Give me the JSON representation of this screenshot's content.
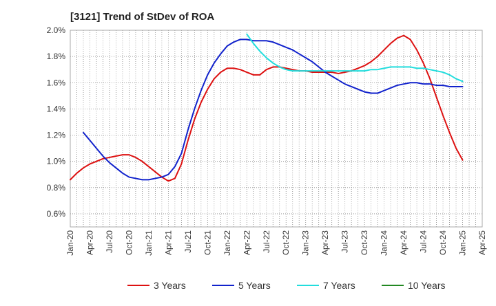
{
  "chart_data": {
    "type": "line",
    "title": "[3121]  Trend of StDev of ROA",
    "xlabel": "",
    "ylabel": "",
    "x_ticks": [
      "Jan-20",
      "Apr-20",
      "Jul-20",
      "Oct-20",
      "Jan-21",
      "Apr-21",
      "Jul-21",
      "Oct-21",
      "Jan-22",
      "Apr-22",
      "Jul-22",
      "Oct-22",
      "Jan-23",
      "Apr-23",
      "Jul-23",
      "Oct-23",
      "Jan-24",
      "Apr-24",
      "Jul-24",
      "Oct-24",
      "Jan-25",
      "Apr-25"
    ],
    "y_ticks": [
      "0.6%",
      "0.8%",
      "1.0%",
      "1.2%",
      "1.4%",
      "1.6%",
      "1.8%",
      "2.0%"
    ],
    "ylim": [
      0.5,
      2.0
    ],
    "grid": true,
    "legend_position": "bottom",
    "series": [
      {
        "name": "3 Years",
        "color": "#dd1111",
        "points": [
          [
            "2020-01",
            0.86
          ],
          [
            "2020-02",
            0.91
          ],
          [
            "2020-03",
            0.95
          ],
          [
            "2020-04",
            0.98
          ],
          [
            "2020-05",
            1.0
          ],
          [
            "2020-06",
            1.02
          ],
          [
            "2020-07",
            1.03
          ],
          [
            "2020-08",
            1.04
          ],
          [
            "2020-09",
            1.05
          ],
          [
            "2020-10",
            1.05
          ],
          [
            "2020-11",
            1.03
          ],
          [
            "2020-12",
            1.0
          ],
          [
            "2021-01",
            0.96
          ],
          [
            "2021-02",
            0.92
          ],
          [
            "2021-03",
            0.88
          ],
          [
            "2021-04",
            0.85
          ],
          [
            "2021-05",
            0.87
          ],
          [
            "2021-06",
            0.98
          ],
          [
            "2021-07",
            1.16
          ],
          [
            "2021-08",
            1.32
          ],
          [
            "2021-09",
            1.45
          ],
          [
            "2021-10",
            1.55
          ],
          [
            "2021-11",
            1.63
          ],
          [
            "2021-12",
            1.68
          ],
          [
            "2022-01",
            1.71
          ],
          [
            "2022-02",
            1.71
          ],
          [
            "2022-03",
            1.7
          ],
          [
            "2022-04",
            1.68
          ],
          [
            "2022-05",
            1.66
          ],
          [
            "2022-06",
            1.66
          ],
          [
            "2022-07",
            1.7
          ],
          [
            "2022-08",
            1.72
          ],
          [
            "2022-09",
            1.72
          ],
          [
            "2022-10",
            1.71
          ],
          [
            "2022-11",
            1.7
          ],
          [
            "2022-12",
            1.69
          ],
          [
            "2023-01",
            1.69
          ],
          [
            "2023-02",
            1.68
          ],
          [
            "2023-03",
            1.68
          ],
          [
            "2023-04",
            1.68
          ],
          [
            "2023-05",
            1.68
          ],
          [
            "2023-06",
            1.67
          ],
          [
            "2023-07",
            1.68
          ],
          [
            "2023-08",
            1.69
          ],
          [
            "2023-09",
            1.71
          ],
          [
            "2023-10",
            1.73
          ],
          [
            "2023-11",
            1.76
          ],
          [
            "2023-12",
            1.8
          ],
          [
            "2024-01",
            1.85
          ],
          [
            "2024-02",
            1.9
          ],
          [
            "2024-03",
            1.94
          ],
          [
            "2024-04",
            1.96
          ],
          [
            "2024-05",
            1.93
          ],
          [
            "2024-06",
            1.85
          ],
          [
            "2024-07",
            1.75
          ],
          [
            "2024-08",
            1.63
          ],
          [
            "2024-09",
            1.49
          ],
          [
            "2024-10",
            1.35
          ],
          [
            "2024-11",
            1.22
          ],
          [
            "2024-12",
            1.1
          ],
          [
            "2025-01",
            1.01
          ]
        ]
      },
      {
        "name": "5 Years",
        "color": "#1122cc",
        "points": [
          [
            "2020-03",
            1.22
          ],
          [
            "2020-04",
            1.16
          ],
          [
            "2020-05",
            1.1
          ],
          [
            "2020-06",
            1.04
          ],
          [
            "2020-07",
            0.99
          ],
          [
            "2020-08",
            0.95
          ],
          [
            "2020-09",
            0.91
          ],
          [
            "2020-10",
            0.88
          ],
          [
            "2020-11",
            0.87
          ],
          [
            "2020-12",
            0.86
          ],
          [
            "2021-01",
            0.86
          ],
          [
            "2021-02",
            0.87
          ],
          [
            "2021-03",
            0.88
          ],
          [
            "2021-04",
            0.9
          ],
          [
            "2021-05",
            0.96
          ],
          [
            "2021-06",
            1.06
          ],
          [
            "2021-07",
            1.24
          ],
          [
            "2021-08",
            1.4
          ],
          [
            "2021-09",
            1.54
          ],
          [
            "2021-10",
            1.66
          ],
          [
            "2021-11",
            1.75
          ],
          [
            "2021-12",
            1.82
          ],
          [
            "2022-01",
            1.88
          ],
          [
            "2022-02",
            1.91
          ],
          [
            "2022-03",
            1.93
          ],
          [
            "2022-04",
            1.93
          ],
          [
            "2022-05",
            1.92
          ],
          [
            "2022-06",
            1.92
          ],
          [
            "2022-07",
            1.92
          ],
          [
            "2022-08",
            1.91
          ],
          [
            "2022-09",
            1.89
          ],
          [
            "2022-10",
            1.87
          ],
          [
            "2022-11",
            1.85
          ],
          [
            "2022-12",
            1.82
          ],
          [
            "2023-01",
            1.79
          ],
          [
            "2023-02",
            1.76
          ],
          [
            "2023-03",
            1.72
          ],
          [
            "2023-04",
            1.68
          ],
          [
            "2023-05",
            1.65
          ],
          [
            "2023-06",
            1.62
          ],
          [
            "2023-07",
            1.59
          ],
          [
            "2023-08",
            1.57
          ],
          [
            "2023-09",
            1.55
          ],
          [
            "2023-10",
            1.53
          ],
          [
            "2023-11",
            1.52
          ],
          [
            "2023-12",
            1.52
          ],
          [
            "2024-01",
            1.54
          ],
          [
            "2024-02",
            1.56
          ],
          [
            "2024-03",
            1.58
          ],
          [
            "2024-04",
            1.59
          ],
          [
            "2024-05",
            1.6
          ],
          [
            "2024-06",
            1.6
          ],
          [
            "2024-07",
            1.59
          ],
          [
            "2024-08",
            1.59
          ],
          [
            "2024-09",
            1.58
          ],
          [
            "2024-10",
            1.58
          ],
          [
            "2024-11",
            1.57
          ],
          [
            "2024-12",
            1.57
          ],
          [
            "2025-01",
            1.57
          ]
        ]
      },
      {
        "name": "7 Years",
        "color": "#22dddd",
        "points": [
          [
            "2022-04",
            1.97
          ],
          [
            "2022-05",
            1.9
          ],
          [
            "2022-06",
            1.84
          ],
          [
            "2022-07",
            1.79
          ],
          [
            "2022-08",
            1.75
          ],
          [
            "2022-09",
            1.72
          ],
          [
            "2022-10",
            1.7
          ],
          [
            "2022-11",
            1.69
          ],
          [
            "2022-12",
            1.69
          ],
          [
            "2023-01",
            1.69
          ],
          [
            "2023-02",
            1.69
          ],
          [
            "2023-03",
            1.69
          ],
          [
            "2023-04",
            1.69
          ],
          [
            "2023-05",
            1.69
          ],
          [
            "2023-06",
            1.69
          ],
          [
            "2023-07",
            1.69
          ],
          [
            "2023-08",
            1.69
          ],
          [
            "2023-09",
            1.69
          ],
          [
            "2023-10",
            1.69
          ],
          [
            "2023-11",
            1.7
          ],
          [
            "2023-12",
            1.7
          ],
          [
            "2024-01",
            1.71
          ],
          [
            "2024-02",
            1.72
          ],
          [
            "2024-03",
            1.72
          ],
          [
            "2024-04",
            1.72
          ],
          [
            "2024-05",
            1.72
          ],
          [
            "2024-06",
            1.71
          ],
          [
            "2024-07",
            1.71
          ],
          [
            "2024-08",
            1.7
          ],
          [
            "2024-09",
            1.69
          ],
          [
            "2024-10",
            1.68
          ],
          [
            "2024-11",
            1.66
          ],
          [
            "2024-12",
            1.63
          ],
          [
            "2025-01",
            1.61
          ]
        ]
      },
      {
        "name": "10 Years",
        "color": "#228822",
        "points": []
      }
    ]
  }
}
